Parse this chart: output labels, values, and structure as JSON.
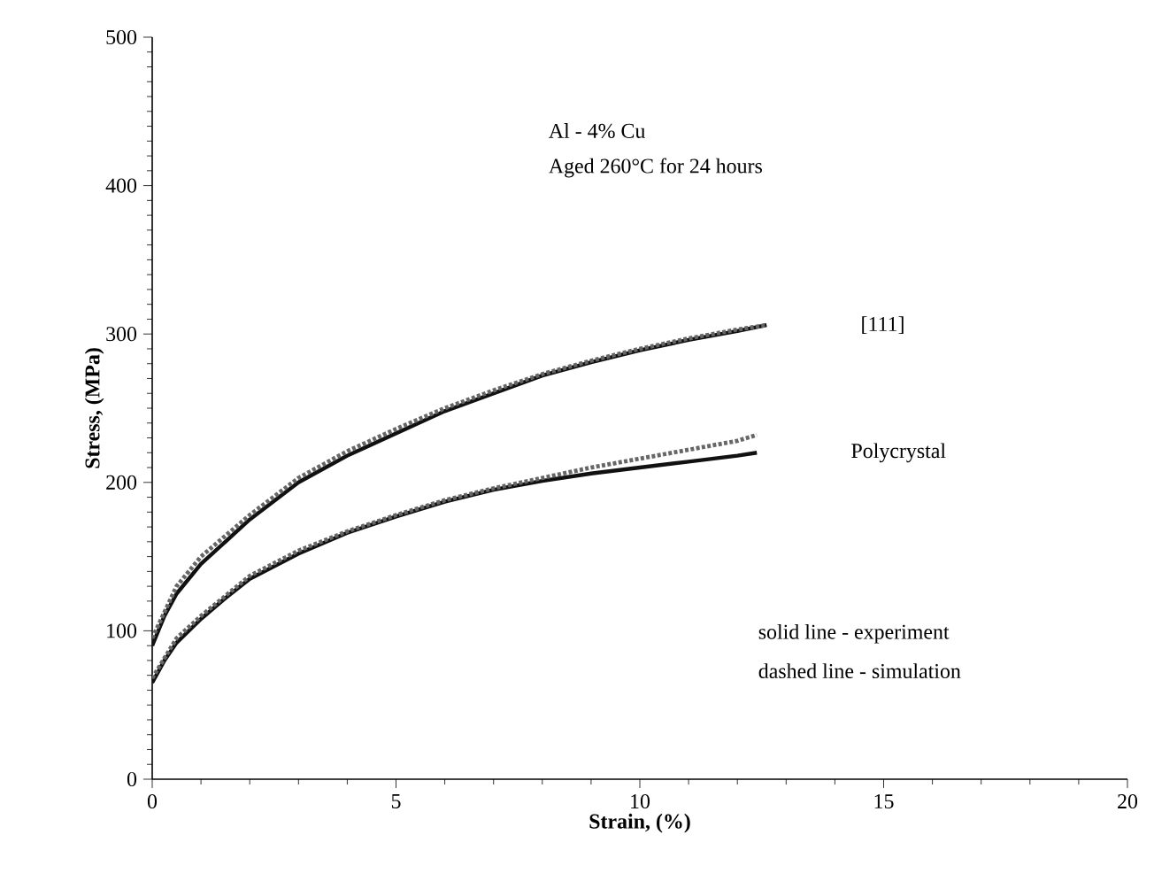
{
  "chart_data": {
    "type": "line",
    "xlabel": "Strain, (%)",
    "ylabel": "Stress, (MPa)",
    "xlim": [
      0,
      20
    ],
    "ylim": [
      0,
      500
    ],
    "xticks": [
      0,
      5,
      10,
      15,
      20
    ],
    "yticks": [
      0,
      100,
      200,
      300,
      400,
      500
    ],
    "grid": false,
    "legend": false,
    "marker": "none",
    "annotations": [
      "Al - 4% Cu",
      "Aged 260°C for 24 hours",
      "solid line - experiment",
      "dashed line - simulation"
    ],
    "series": [
      {
        "name": "[111]",
        "color": "#111111",
        "line_style": "solid",
        "x": [
          0,
          0.25,
          0.5,
          1,
          1.5,
          2,
          3,
          4,
          5,
          6,
          7,
          8,
          9,
          10,
          11,
          12,
          12.6
        ],
        "values": [
          90,
          110,
          125,
          145,
          160,
          175,
          200,
          218,
          233,
          248,
          260,
          272,
          281,
          289,
          296,
          302,
          306
        ]
      },
      {
        "color": "#666666",
        "line_style": "dashed",
        "x": [
          0,
          0.5,
          1,
          2,
          3,
          4,
          5,
          6,
          7,
          8,
          9,
          10,
          11,
          12,
          12.6
        ],
        "values": [
          95,
          130,
          150,
          178,
          203,
          221,
          236,
          250,
          262,
          273,
          282,
          290,
          297,
          303,
          306
        ]
      },
      {
        "name": "Polycrystal",
        "color": "#111111",
        "line_style": "solid",
        "x": [
          0,
          0.25,
          0.5,
          1,
          1.5,
          2,
          3,
          4,
          5,
          6,
          7,
          8,
          9,
          10,
          11,
          12,
          12.4
        ],
        "values": [
          65,
          80,
          92,
          108,
          122,
          135,
          152,
          166,
          177,
          187,
          195,
          201,
          206,
          210,
          214,
          218,
          220
        ]
      },
      {
        "color": "#666666",
        "line_style": "dashed",
        "x": [
          0,
          0.5,
          1,
          2,
          3,
          4,
          5,
          6,
          7,
          8,
          9,
          10,
          11,
          12,
          12.4
        ],
        "values": [
          68,
          95,
          110,
          137,
          154,
          167,
          178,
          188,
          196,
          203,
          210,
          216,
          222,
          228,
          232
        ]
      }
    ]
  }
}
